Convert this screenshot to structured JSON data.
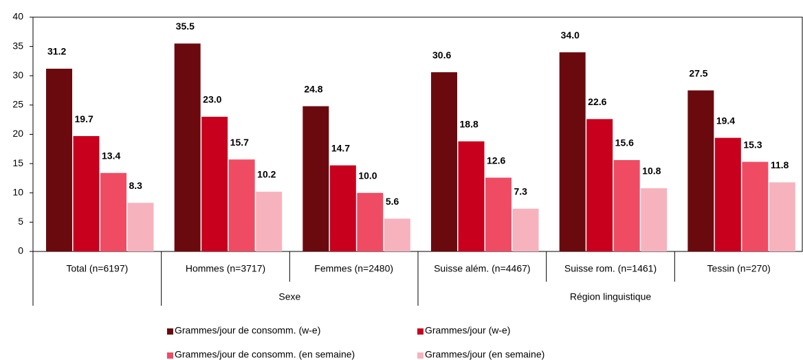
{
  "chart_data": {
    "type": "bar",
    "categories": [
      "Total (n=6197)",
      "Hommes (n=3717)",
      "Femmes (n=2480)",
      "Suisse além. (n=4467)",
      "Suisse rom. (n=1461)",
      "Tessin (n=270)"
    ],
    "category_groups": [
      {
        "name": "Sexe",
        "from": 1,
        "to": 2
      },
      {
        "name": "Région linguistique",
        "from": 3,
        "to": 5
      }
    ],
    "series": [
      {
        "name": "Grammes/jour de consomm. (w-e)",
        "color": "#6b0a0e",
        "values": [
          31.2,
          35.5,
          24.8,
          30.6,
          34.0,
          27.5
        ],
        "value_labels": [
          "31.2",
          "35.5",
          "24.8",
          "30.6",
          "34.0",
          "27.5"
        ]
      },
      {
        "name": "Grammes/jour (w-e)",
        "color": "#c8001e",
        "values": [
          19.7,
          23.0,
          14.7,
          18.8,
          22.6,
          19.4
        ],
        "value_labels": [
          "19.7",
          "23.0",
          "14.7",
          "18.8",
          "22.6",
          "19.4"
        ]
      },
      {
        "name": "Grammes/jour de consomm. (en semaine)",
        "color": "#ef4c63",
        "values": [
          13.4,
          15.7,
          10.0,
          12.6,
          15.6,
          15.3
        ],
        "value_labels": [
          "13.4",
          "15.7",
          "10.0",
          "12.6",
          "15.6",
          "15.3"
        ]
      },
      {
        "name": "Grammes/jour (en semaine)",
        "color": "#f7b3bd",
        "values": [
          8.3,
          10.2,
          5.6,
          7.3,
          10.8,
          11.8
        ],
        "value_labels": [
          "8.3",
          "10.2",
          "5.6",
          "7.3",
          "10.8",
          "11.8"
        ]
      }
    ],
    "ylim": [
      0,
      40
    ],
    "yticks": [
      0,
      5,
      10,
      15,
      20,
      25,
      30,
      35,
      40
    ],
    "grid": false
  }
}
